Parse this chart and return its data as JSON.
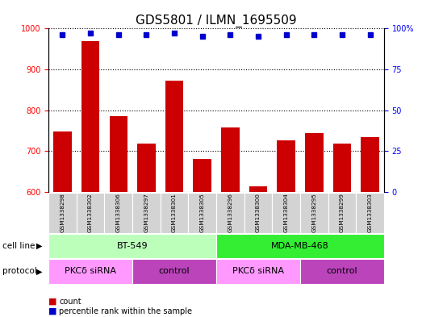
{
  "title": "GDS5801 / ILMN_1695509",
  "samples": [
    "GSM1338298",
    "GSM1338302",
    "GSM1338306",
    "GSM1338297",
    "GSM1338301",
    "GSM1338305",
    "GSM1338296",
    "GSM1338300",
    "GSM1338304",
    "GSM1338295",
    "GSM1338299",
    "GSM1338303"
  ],
  "counts": [
    748,
    970,
    785,
    718,
    873,
    680,
    757,
    614,
    727,
    743,
    718,
    733
  ],
  "percentiles": [
    96,
    97,
    96,
    96,
    97,
    95,
    96,
    95,
    96,
    96,
    96,
    96
  ],
  "ylim_left": [
    600,
    1000
  ],
  "ylim_right": [
    0,
    100
  ],
  "yticks_left": [
    600,
    700,
    800,
    900,
    1000
  ],
  "yticks_right": [
    0,
    25,
    50,
    75,
    100
  ],
  "bar_color": "#cc0000",
  "dot_color": "#0000cc",
  "cell_line_groups": [
    {
      "label": "BT-549",
      "start": 0,
      "end": 5,
      "color": "#bbffbb"
    },
    {
      "label": "MDA-MB-468",
      "start": 6,
      "end": 11,
      "color": "#33dd33"
    }
  ],
  "protocol_groups": [
    {
      "label": "PKCδ siRNA",
      "start": 0,
      "end": 2,
      "color": "#ff88ff"
    },
    {
      "label": "control",
      "start": 3,
      "end": 5,
      "color": "#cc44cc"
    },
    {
      "label": "PKCδ siRNA",
      "start": 6,
      "end": 8,
      "color": "#ff88ff"
    },
    {
      "label": "control",
      "start": 9,
      "end": 11,
      "color": "#cc44cc"
    }
  ],
  "cell_line_label": "cell line",
  "protocol_label": "protocol",
  "legend_count_label": "count",
  "legend_pct_label": "percentile rank within the sample",
  "title_fontsize": 11,
  "tick_fontsize": 7,
  "label_fontsize": 8
}
